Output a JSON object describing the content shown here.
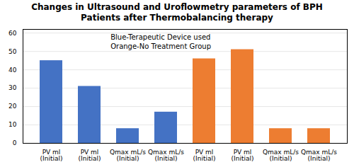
{
  "chart_data": {
    "type": "bar",
    "title": "Changes in Ultrasound and Uroflowmetry parameters of BPH\nPatients after Thermobalancing therapy",
    "annotation": "Blue-Terapeutic Device used\nOrange-No Treatment Group",
    "categories": [
      "PV ml\n(Initial)",
      "PV ml\n(Initial)",
      "Qmax mL/s\n(Initial)",
      "Qmax mL/s\n(Initial)",
      "PV ml\n(Initial)",
      "PV ml\n(Initial)",
      "Qmax mL/s\n(Initial)",
      "Qmax mL/s\n(Initial)"
    ],
    "values": [
      45,
      31,
      8,
      17,
      46,
      51,
      8,
      8
    ],
    "colors": [
      "#4472C4",
      "#4472C4",
      "#4472C4",
      "#4472C4",
      "#ED7D31",
      "#ED7D31",
      "#ED7D31",
      "#ED7D31"
    ],
    "ylim": [
      0,
      62
    ],
    "yticks": [
      0,
      10,
      20,
      30,
      40,
      50,
      60
    ],
    "grid": true
  }
}
